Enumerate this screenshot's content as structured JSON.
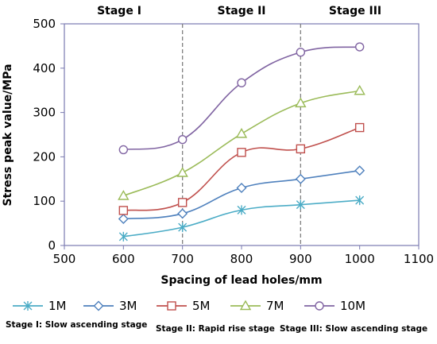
{
  "chart_data": {
    "type": "line",
    "xlabel": "Spacing of lead holes/mm",
    "ylabel": "Stress peak value/MPa",
    "xlim": [
      500,
      1100
    ],
    "ylim": [
      0,
      500
    ],
    "x_ticks": [
      "500",
      "600",
      "700",
      "800",
      "900",
      "1000",
      "1100"
    ],
    "y_ticks": [
      "0",
      "100",
      "200",
      "300",
      "400",
      "500"
    ],
    "x": [
      600,
      700,
      800,
      900,
      1000
    ],
    "grid": false,
    "legend_position": "bottom",
    "stage_dividers": [
      700,
      900
    ],
    "stage_labels": [
      "Stage I",
      "Stage II",
      "Stage III"
    ],
    "stage_descriptions": [
      "Stage I: Slow ascending stage",
      "Stage II: Rapid rise stage",
      "Stage III: Slow ascending stage"
    ],
    "series": [
      {
        "name": "1M",
        "color": "#4BACC6",
        "marker": "asterisk",
        "values": [
          20,
          41,
          80,
          92,
          102
        ]
      },
      {
        "name": "3M",
        "color": "#4F81BD",
        "marker": "diamond",
        "values": [
          60,
          72,
          130,
          150,
          169
        ]
      },
      {
        "name": "5M",
        "color": "#C0504D",
        "marker": "square",
        "values": [
          79,
          97,
          210,
          218,
          266
        ]
      },
      {
        "name": "7M",
        "color": "#9BBB59",
        "marker": "triangle",
        "values": [
          112,
          164,
          252,
          321,
          349
        ]
      },
      {
        "name": "10M",
        "color": "#8064A2",
        "marker": "circle",
        "values": [
          216,
          239,
          367,
          436,
          448
        ]
      }
    ]
  }
}
